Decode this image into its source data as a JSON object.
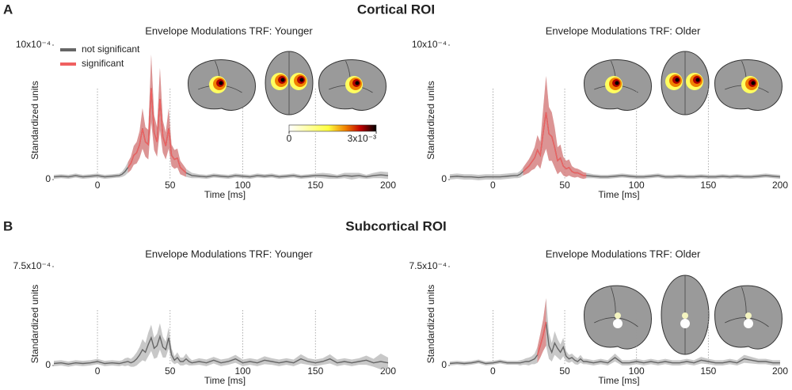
{
  "panels": [
    {
      "label": "A",
      "title": "Cortical ROI"
    },
    {
      "label": "B",
      "title": "Subcortical ROI"
    }
  ],
  "chart_data": [
    {
      "type": "line",
      "title": "Envelope Modulations TRF: Younger",
      "xlabel": "Time [ms]",
      "ylabel": "Standardized units",
      "xlim": [
        -30,
        200
      ],
      "xticks": [
        0,
        50,
        100,
        150,
        200
      ],
      "ylim": [
        0,
        0.001
      ],
      "yticks": [
        0,
        {
          "value": 0.001,
          "label": "10x10⁻⁴"
        }
      ],
      "grid": true,
      "color": "#666666",
      "significant_color": "#f06060",
      "legend": [
        {
          "name": "not significant"
        },
        {
          "name": "significant"
        }
      ],
      "colorbar": {
        "ticks": [
          0,
          {
            "value": 0.003,
            "label": "3x10⁻³"
          }
        ]
      },
      "x": [
        -30,
        -25,
        -20,
        -15,
        -10,
        -5,
        0,
        5,
        10,
        15,
        17,
        19,
        21,
        23,
        25,
        27,
        29,
        31,
        33,
        35,
        37,
        39,
        41,
        43,
        45,
        47,
        49,
        51,
        53,
        55,
        57,
        59,
        61,
        63,
        65,
        70,
        75,
        80,
        85,
        90,
        95,
        100,
        105,
        110,
        115,
        120,
        125,
        130,
        135,
        140,
        145,
        150,
        155,
        160,
        165,
        170,
        175,
        180,
        185,
        190,
        195,
        200
      ],
      "values": [
        2e-05,
        2.5e-05,
        2e-05,
        3e-05,
        2e-05,
        2.5e-05,
        3e-05,
        2e-05,
        2.5e-05,
        3e-05,
        4e-05,
        6e-05,
        9e-05,
        0.00012,
        0.00018,
        0.0002,
        0.00026,
        0.00038,
        0.00028,
        0.00026,
        0.00068,
        0.00035,
        0.00028,
        0.0006,
        0.00032,
        0.00025,
        0.00038,
        0.00018,
        0.00015,
        0.00016,
        9e-05,
        7e-05,
        5e-05,
        4e-05,
        3e-05,
        2.5e-05,
        2e-05,
        3e-05,
        2.5e-05,
        2e-05,
        3e-05,
        2.5e-05,
        2e-05,
        3e-05,
        2.5e-05,
        3e-05,
        2e-05,
        2.5e-05,
        3e-05,
        2e-05,
        2.5e-05,
        3e-05,
        3e-05,
        2.5e-05,
        2e-05,
        3e-05,
        2.5e-05,
        3e-05,
        2e-05,
        3e-05,
        3.5e-05,
        3e-05
      ],
      "ci": [
        1.5e-05,
        1.5e-05,
        1.5e-05,
        1.5e-05,
        1.5e-05,
        1.5e-05,
        1.5e-05,
        1.5e-05,
        1.5e-05,
        1.5e-05,
        2e-05,
        3e-05,
        4e-05,
        5e-05,
        7e-05,
        8e-05,
        0.0001,
        0.00015,
        0.00011,
        0.00011,
        0.00025,
        0.00013,
        0.00011,
        0.00023,
        0.00012,
        0.0001,
        0.00015,
        8e-05,
        7e-05,
        7e-05,
        5e-05,
        4e-05,
        3e-05,
        2.5e-05,
        2e-05,
        1.5e-05,
        1.5e-05,
        1.5e-05,
        1.5e-05,
        1.5e-05,
        1.5e-05,
        1.5e-05,
        1.5e-05,
        1.5e-05,
        1.5e-05,
        1.5e-05,
        1.5e-05,
        1.5e-05,
        1.5e-05,
        1.5e-05,
        1.5e-05,
        1.5e-05,
        2e-05,
        2e-05,
        1.5e-05,
        2e-05,
        2.5e-05,
        2e-05,
        1.5e-05,
        2e-05,
        2.5e-05,
        2.5e-05
      ],
      "significant": [
        [
          21,
          61
        ]
      ]
    },
    {
      "type": "line",
      "title": "Envelope Modulations TRF: Older",
      "xlabel": "Time [ms]",
      "ylabel": "Standardized units",
      "xlim": [
        -30,
        200
      ],
      "xticks": [
        0,
        50,
        100,
        150,
        200
      ],
      "ylim": [
        0,
        0.001
      ],
      "yticks": [
        0,
        {
          "value": 0.001,
          "label": "10x10⁻⁴"
        }
      ],
      "grid": true,
      "color": "#666666",
      "significant_color": "#f06060",
      "x": [
        -30,
        -25,
        -20,
        -15,
        -10,
        -5,
        0,
        5,
        10,
        15,
        17,
        19,
        21,
        23,
        25,
        27,
        29,
        31,
        33,
        35,
        37,
        39,
        41,
        43,
        45,
        47,
        49,
        51,
        53,
        55,
        57,
        59,
        61,
        63,
        65,
        70,
        75,
        80,
        85,
        90,
        95,
        100,
        105,
        110,
        115,
        120,
        125,
        130,
        135,
        140,
        145,
        150,
        155,
        160,
        165,
        170,
        175,
        180,
        185,
        190,
        195,
        200
      ],
      "values": [
        2e-05,
        2.5e-05,
        2e-05,
        2e-05,
        1.5e-05,
        2e-05,
        2e-05,
        2e-05,
        2.5e-05,
        3e-05,
        3e-05,
        4e-05,
        6e-05,
        8e-05,
        0.0001,
        0.00013,
        0.00016,
        0.00022,
        0.00018,
        0.00035,
        0.0005,
        0.00034,
        0.00032,
        0.00024,
        0.00014,
        0.00016,
        0.0001,
        8e-05,
        9e-05,
        6e-05,
        5e-05,
        5e-05,
        4e-05,
        3e-05,
        3e-05,
        2.5e-05,
        2e-05,
        2e-05,
        2.5e-05,
        3e-05,
        2.5e-05,
        2e-05,
        2e-05,
        2.5e-05,
        3e-05,
        2e-05,
        2e-05,
        2.5e-05,
        2e-05,
        2e-05,
        2.5e-05,
        2e-05,
        2e-05,
        2.5e-05,
        2e-05,
        2.5e-05,
        2e-05,
        2e-05,
        2.5e-05,
        3e-05,
        2.5e-05,
        2e-05
      ],
      "ci": [
        2e-05,
        2e-05,
        2e-05,
        2e-05,
        2e-05,
        2e-05,
        2e-05,
        2e-05,
        2e-05,
        2e-05,
        2e-05,
        2.5e-05,
        3e-05,
        4e-05,
        5e-05,
        6e-05,
        8e-05,
        0.00011,
        0.0001,
        0.00018,
        0.00027,
        0.0002,
        0.00018,
        0.00015,
        0.0001,
        0.0001,
        7e-05,
        6e-05,
        6e-05,
        4e-05,
        3.5e-05,
        3e-05,
        3e-05,
        2.5e-05,
        2e-05,
        1.5e-05,
        1.5e-05,
        1.5e-05,
        1.5e-05,
        1.5e-05,
        1.5e-05,
        1.5e-05,
        1.5e-05,
        1.5e-05,
        1.5e-05,
        1.5e-05,
        1.5e-05,
        1.5e-05,
        1.5e-05,
        1.5e-05,
        1.5e-05,
        1.5e-05,
        1.5e-05,
        1.5e-05,
        1.5e-05,
        1.5e-05,
        1.5e-05,
        1.5e-05,
        1.5e-05,
        1.5e-05,
        1.5e-05,
        1.5e-05
      ],
      "significant": [
        [
          21,
          65
        ]
      ]
    },
    {
      "type": "line",
      "title": "Envelope Modulations TRF: Younger",
      "xlabel": "Time [ms]",
      "ylabel": "Standardized units",
      "xlim": [
        -30,
        200
      ],
      "xticks": [
        0,
        50,
        100,
        150,
        200
      ],
      "ylim": [
        0,
        0.00075
      ],
      "yticks": [
        0,
        {
          "value": 0.00075,
          "label": "7.5x10⁻⁴"
        }
      ],
      "grid": true,
      "color": "#666666",
      "significant_color": "#f06060",
      "x": [
        -30,
        -25,
        -20,
        -15,
        -10,
        -5,
        0,
        5,
        10,
        15,
        17,
        19,
        21,
        23,
        25,
        27,
        29,
        31,
        33,
        35,
        37,
        39,
        41,
        43,
        45,
        47,
        49,
        51,
        53,
        55,
        57,
        59,
        61,
        63,
        65,
        70,
        75,
        80,
        85,
        90,
        95,
        100,
        105,
        110,
        115,
        120,
        125,
        130,
        135,
        140,
        145,
        150,
        155,
        160,
        165,
        170,
        175,
        180,
        185,
        190,
        195,
        200
      ],
      "values": [
        1.5e-05,
        2e-05,
        1e-05,
        2e-05,
        1.5e-05,
        2e-05,
        3e-05,
        1.5e-05,
        2e-05,
        1.5e-05,
        2e-05,
        2.5e-05,
        3e-05,
        2e-05,
        3e-05,
        5e-05,
        8e-05,
        0.00012,
        0.0001,
        0.00016,
        0.00021,
        0.00013,
        0.00015,
        0.00022,
        0.00014,
        0.00012,
        0.00021,
        8e-05,
        4e-05,
        6e-05,
        3e-05,
        3e-05,
        5e-05,
        3e-05,
        2e-05,
        3e-05,
        2e-05,
        4e-05,
        2e-05,
        3e-05,
        5e-05,
        2e-05,
        3e-05,
        2e-05,
        4e-05,
        3e-05,
        2e-05,
        3e-05,
        2e-05,
        5e-05,
        3e-05,
        2e-05,
        3e-05,
        5e-05,
        2e-05,
        3e-05,
        2e-05,
        3e-05,
        4e-05,
        2e-05,
        3e-05,
        2e-05
      ],
      "ci": [
        2e-05,
        2e-05,
        2e-05,
        2e-05,
        2e-05,
        2e-05,
        2e-05,
        2e-05,
        2e-05,
        2e-05,
        2e-05,
        3e-05,
        3e-05,
        3e-05,
        4e-05,
        5e-05,
        6e-05,
        8e-05,
        7e-05,
        9e-05,
        0.0001,
        8e-05,
        9e-05,
        0.0001,
        8e-05,
        6e-05,
        8e-05,
        5e-05,
        3e-05,
        4e-05,
        3e-05,
        3e-05,
        4e-05,
        3e-05,
        2e-05,
        2.5e-05,
        2.5e-05,
        2.5e-05,
        2.5e-05,
        2.5e-05,
        3e-05,
        2.5e-05,
        2.5e-05,
        2.5e-05,
        3e-05,
        2.5e-05,
        2.5e-05,
        2.5e-05,
        2.5e-05,
        3.5e-05,
        2.5e-05,
        2.5e-05,
        2.5e-05,
        3.5e-05,
        2.5e-05,
        2.5e-05,
        2.5e-05,
        2.5e-05,
        3.5e-05,
        3e-05,
        6e-05,
        4e-05
      ],
      "significant": []
    },
    {
      "type": "line",
      "title": "Envelope Modulations TRF: Older",
      "xlabel": "Time [ms]",
      "ylabel": "Standardized units",
      "xlim": [
        -30,
        200
      ],
      "xticks": [
        0,
        50,
        100,
        150,
        200
      ],
      "ylim": [
        0,
        0.00075
      ],
      "yticks": [
        0,
        {
          "value": 0.00075,
          "label": "7.5x10⁻⁴"
        }
      ],
      "grid": true,
      "color": "#666666",
      "significant_color": "#f06060",
      "x": [
        -30,
        -25,
        -20,
        -15,
        -10,
        -5,
        0,
        5,
        10,
        15,
        17,
        19,
        21,
        23,
        25,
        27,
        29,
        31,
        33,
        35,
        37,
        39,
        41,
        43,
        45,
        47,
        49,
        51,
        53,
        55,
        57,
        59,
        61,
        63,
        65,
        70,
        75,
        80,
        85,
        90,
        95,
        100,
        105,
        110,
        115,
        120,
        125,
        130,
        135,
        140,
        145,
        150,
        155,
        160,
        165,
        170,
        175,
        180,
        185,
        190,
        195,
        200
      ],
      "values": [
        1.5e-05,
        2e-05,
        1.5e-05,
        2e-05,
        3e-05,
        1.5e-05,
        2e-05,
        3e-05,
        2e-05,
        2e-05,
        2e-05,
        2e-05,
        2.5e-05,
        3e-05,
        3e-05,
        4e-05,
        5e-05,
        8e-05,
        0.00015,
        0.00023,
        0.00033,
        0.00015,
        0.0001,
        0.00017,
        0.00013,
        0.0001,
        0.00014,
        7e-05,
        5e-05,
        6e-05,
        4e-05,
        3e-05,
        5e-05,
        3e-05,
        3e-05,
        2e-05,
        3e-05,
        2e-05,
        6e-05,
        2e-05,
        2e-05,
        3e-05,
        2e-05,
        3e-05,
        2e-05,
        3e-05,
        2e-05,
        2e-05,
        3e-05,
        2e-05,
        4e-05,
        3e-05,
        2e-05,
        2e-05,
        3e-05,
        2e-05,
        5e-05,
        4e-05,
        3e-05,
        3e-05,
        2e-05,
        2e-05
      ],
      "ci": [
        1.5e-05,
        1.5e-05,
        1.5e-05,
        1.5e-05,
        1.5e-05,
        1.5e-05,
        1.5e-05,
        1.5e-05,
        1.5e-05,
        1.5e-05,
        1.5e-05,
        2e-05,
        2e-05,
        2.5e-05,
        3e-05,
        3e-05,
        4e-05,
        6e-05,
        9e-05,
        0.00012,
        0.00018,
        0.0001,
        7e-05,
        9e-05,
        7e-05,
        6e-05,
        7e-05,
        4e-05,
        3e-05,
        3e-05,
        3e-05,
        2.5e-05,
        3e-05,
        2e-05,
        2e-05,
        2e-05,
        2e-05,
        2e-05,
        3e-05,
        2e-05,
        2e-05,
        2e-05,
        2e-05,
        2e-05,
        2e-05,
        2e-05,
        2e-05,
        2e-05,
        2e-05,
        2e-05,
        2.5e-05,
        2e-05,
        2e-05,
        2e-05,
        2e-05,
        2e-05,
        3e-05,
        2.5e-05,
        2e-05,
        2e-05,
        2e-05,
        2e-05
      ],
      "significant": [
        [
          31,
          37
        ]
      ]
    }
  ]
}
